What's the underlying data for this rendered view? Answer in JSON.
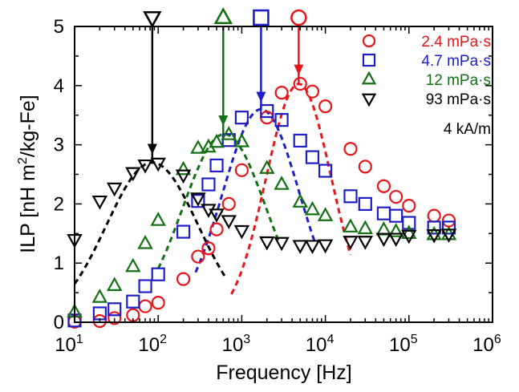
{
  "chart_data": {
    "type": "scatter",
    "title": "",
    "xlabel": "Frequency [Hz]",
    "ylabel_parts": [
      "ILP [nH m",
      "2",
      "/kg-Fe]"
    ],
    "x_scale": "log",
    "xlim": [
      10,
      1000000
    ],
    "ylim": [
      0,
      5
    ],
    "x_ticks": [
      {
        "base": "10",
        "exp": "1"
      },
      {
        "base": "10",
        "exp": "2"
      },
      {
        "base": "10",
        "exp": "3"
      },
      {
        "base": "10",
        "exp": "4"
      },
      {
        "base": "10",
        "exp": "5"
      },
      {
        "base": "10",
        "exp": "6"
      }
    ],
    "y_ticks": [
      "0",
      "1",
      "2",
      "3",
      "4",
      "5"
    ],
    "grid": false,
    "legend_position": "top-right",
    "annotation": "4 kA/m",
    "series": [
      {
        "name": "2.4 mPa·s",
        "marker": "circle",
        "color": "#e8161b",
        "peak_frequency": 4800,
        "points": [
          [
            10,
            0.01
          ],
          [
            20,
            0.02
          ],
          [
            30,
            0.07
          ],
          [
            50,
            0.12
          ],
          [
            70,
            0.27
          ],
          [
            100,
            0.33
          ],
          [
            200,
            0.73
          ],
          [
            300,
            1.11
          ],
          [
            400,
            1.25
          ],
          [
            500,
            1.57
          ],
          [
            700,
            2.0
          ],
          [
            1000,
            2.57
          ],
          [
            2000,
            3.46
          ],
          [
            3000,
            3.88
          ],
          [
            5000,
            4.03
          ],
          [
            7000,
            3.9
          ],
          [
            10000,
            3.65
          ],
          [
            20000,
            2.93
          ],
          [
            30000,
            2.63
          ],
          [
            50000,
            2.3
          ],
          [
            70000,
            2.12
          ],
          [
            100000,
            1.97
          ],
          [
            200000,
            1.8
          ],
          [
            300000,
            1.72
          ]
        ]
      },
      {
        "name": "4.7 mPa·s",
        "marker": "square",
        "color": "#1e1ec8",
        "peak_frequency": 1700,
        "points": [
          [
            10,
            0.03
          ],
          [
            20,
            0.15
          ],
          [
            30,
            0.22
          ],
          [
            50,
            0.35
          ],
          [
            70,
            0.61
          ],
          [
            100,
            0.81
          ],
          [
            200,
            1.53
          ],
          [
            300,
            2.05
          ],
          [
            400,
            2.33
          ],
          [
            500,
            2.65
          ],
          [
            700,
            3.08
          ],
          [
            1000,
            3.46
          ],
          [
            2000,
            3.57
          ],
          [
            3000,
            3.42
          ],
          [
            5000,
            3.07
          ],
          [
            7000,
            2.79
          ],
          [
            10000,
            2.56
          ],
          [
            20000,
            2.13
          ],
          [
            30000,
            2.0
          ],
          [
            50000,
            1.84
          ],
          [
            70000,
            1.8
          ],
          [
            100000,
            1.68
          ],
          [
            200000,
            1.6
          ],
          [
            300000,
            1.6
          ]
        ]
      },
      {
        "name": "12 mPa·s",
        "marker": "triangle-up",
        "color": "#137013",
        "peak_frequency": 600,
        "points": [
          [
            10,
            0.17
          ],
          [
            20,
            0.42
          ],
          [
            30,
            0.62
          ],
          [
            50,
            0.94
          ],
          [
            70,
            1.33
          ],
          [
            100,
            1.72
          ],
          [
            200,
            2.58
          ],
          [
            300,
            2.94
          ],
          [
            400,
            2.96
          ],
          [
            500,
            3.04
          ],
          [
            700,
            3.17
          ],
          [
            1000,
            3.05
          ],
          [
            2000,
            2.6
          ],
          [
            3000,
            2.33
          ],
          [
            5000,
            2.03
          ],
          [
            7000,
            1.9
          ],
          [
            10000,
            1.8
          ],
          [
            20000,
            1.61
          ],
          [
            30000,
            1.58
          ],
          [
            50000,
            1.56
          ],
          [
            70000,
            1.53
          ],
          [
            100000,
            1.5
          ],
          [
            200000,
            1.48
          ],
          [
            300000,
            1.48
          ]
        ]
      },
      {
        "name": "93 mPa·s",
        "marker": "triangle-down",
        "color": "#000000",
        "peak_frequency": 85,
        "points": [
          [
            10,
            1.4
          ],
          [
            20,
            2.05
          ],
          [
            30,
            2.27
          ],
          [
            50,
            2.53
          ],
          [
            70,
            2.66
          ],
          [
            100,
            2.69
          ],
          [
            200,
            2.49
          ],
          [
            300,
            2.1
          ],
          [
            400,
            1.91
          ],
          [
            500,
            1.83
          ],
          [
            700,
            1.72
          ],
          [
            1000,
            1.55
          ],
          [
            2000,
            1.36
          ],
          [
            3000,
            1.35
          ],
          [
            5000,
            1.3
          ],
          [
            7000,
            1.3
          ],
          [
            10000,
            1.31
          ],
          [
            20000,
            1.37
          ],
          [
            30000,
            1.37
          ],
          [
            50000,
            1.42
          ],
          [
            70000,
            1.42
          ],
          [
            100000,
            1.47
          ],
          [
            200000,
            1.48
          ],
          [
            300000,
            1.49
          ]
        ]
      }
    ],
    "fit_curves": [
      {
        "color": "#e8161b",
        "peak_x": 4800,
        "peak_y": 4.03,
        "log_width": 0.39,
        "x_range": [
          750,
          20000
        ]
      },
      {
        "color": "#1e1ec8",
        "peak_x": 1700,
        "peak_y": 3.6,
        "log_width": 0.46,
        "x_range": [
          280,
          7500
        ]
      },
      {
        "color": "#137013",
        "peak_x": 620,
        "peak_y": 3.18,
        "log_width": 0.5,
        "x_range": [
          100,
          2800
        ]
      },
      {
        "color": "#000000",
        "peak_x": 85,
        "peak_y": 2.7,
        "log_width": 0.55,
        "x_range": [
          10,
          640
        ]
      }
    ]
  }
}
